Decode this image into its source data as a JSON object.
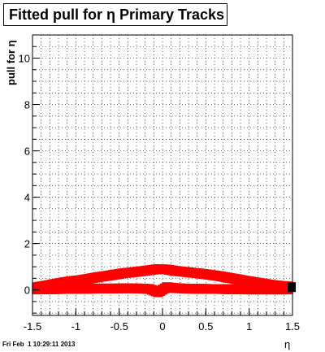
{
  "chart_data": {
    "type": "scatter",
    "title": "Fitted pull for η  Primary Tracks",
    "xlabel": "η",
    "ylabel": "pull for η",
    "xlim": [
      -1.5,
      1.5
    ],
    "ylim": [
      -1.1,
      11.0
    ],
    "x_ticks": [
      "-1.5",
      "-1",
      "-0.5",
      "0",
      "0.5",
      "1",
      "1.5"
    ],
    "y_ticks": [
      "0",
      "2",
      "4",
      "6",
      "8",
      "10"
    ],
    "grid": true,
    "series": [
      {
        "color": "#ff0000",
        "x": [
          -1.45,
          -1.35,
          -1.25,
          -1.15,
          -1.05,
          -0.95,
          -0.85,
          -0.75,
          -0.65,
          -0.55,
          -0.45,
          -0.35,
          -0.25,
          -0.15,
          -0.05,
          0.05,
          0.15,
          0.25,
          0.35,
          0.45,
          0.55,
          0.65,
          0.75,
          0.85,
          0.95,
          1.05,
          1.15,
          1.25,
          1.35,
          1.45
        ],
        "y": [
          0.12,
          0.18,
          0.25,
          0.32,
          0.38,
          0.42,
          0.48,
          0.55,
          0.6,
          0.66,
          0.72,
          0.76,
          0.8,
          0.85,
          0.9,
          0.88,
          0.82,
          0.78,
          0.74,
          0.7,
          0.65,
          0.6,
          0.53,
          0.47,
          0.4,
          0.34,
          0.28,
          0.22,
          0.18,
          0.15
        ]
      },
      {
        "color": "#ff0000",
        "x": [
          -1.45,
          -1.35,
          -1.25,
          -1.15,
          -1.05,
          -0.95,
          -0.85,
          -0.75,
          -0.65,
          -0.55,
          -0.45,
          -0.35,
          -0.25,
          -0.15,
          -0.05,
          0.05,
          0.15,
          0.25,
          0.35,
          0.45,
          0.55,
          0.65,
          0.75,
          0.85,
          0.95,
          1.05,
          1.15,
          1.25,
          1.35,
          1.45
        ],
        "y": [
          0.02,
          0.03,
          0.03,
          0.04,
          0.04,
          0.05,
          0.05,
          0.06,
          0.06,
          0.06,
          0.07,
          0.07,
          0.06,
          0.04,
          -0.1,
          0.12,
          0.08,
          0.06,
          0.05,
          0.05,
          0.04,
          0.04,
          0.03,
          0.03,
          0.02,
          0.02,
          0.02,
          0.02,
          0.02,
          0.02
        ]
      }
    ]
  },
  "timestamp": "Fri Feb  1 10:29:11 2013"
}
